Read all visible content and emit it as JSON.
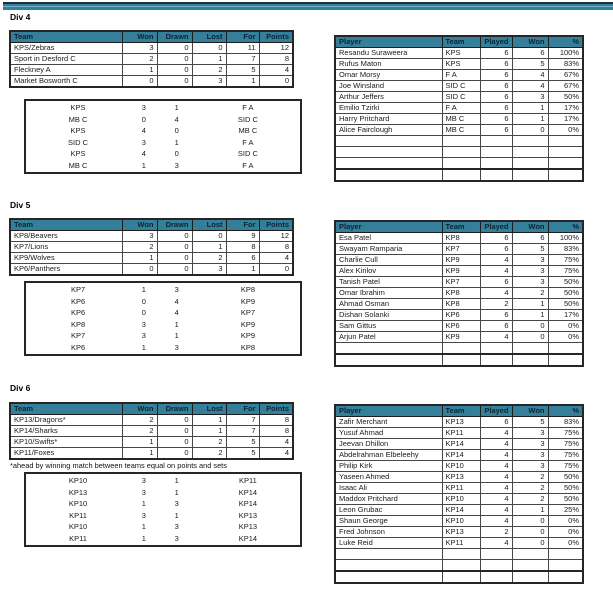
{
  "colors": {
    "accent_teal": "#34809a",
    "header_text": "#0c2330"
  },
  "league_headers": [
    "Team",
    "Won",
    "Drawn",
    "Lost",
    "For",
    "Points"
  ],
  "player_headers": [
    "Player",
    "Team",
    "Played",
    "Won",
    "%"
  ],
  "sections": [
    {
      "title": "Div 4",
      "note": "",
      "standings": [
        [
          "KPS/Zebras",
          "3",
          "0",
          "0",
          "11",
          "12"
        ],
        [
          "Sport in Desford C",
          "2",
          "0",
          "1",
          "7",
          "8"
        ],
        [
          "Fleckney A",
          "1",
          "0",
          "2",
          "5",
          "4"
        ],
        [
          "Market Bosworth C",
          "0",
          "0",
          "3",
          "1",
          "0"
        ]
      ],
      "matches": [
        [
          "KPS",
          "3",
          "1",
          "F A"
        ],
        [
          "MB C",
          "0",
          "4",
          "SID C"
        ],
        [
          "KPS",
          "4",
          "0",
          "MB C"
        ],
        [
          "SID C",
          "3",
          "1",
          "F A"
        ],
        [
          "KPS",
          "4",
          "0",
          "SID C"
        ],
        [
          "MB C",
          "1",
          "3",
          "F A"
        ]
      ],
      "players": [
        [
          "Resandu Suraweera",
          "KPS",
          "6",
          "6",
          "100%"
        ],
        [
          "Rufus Maton",
          "KPS",
          "6",
          "5",
          "83%"
        ],
        [
          "Omar Morsy",
          "F A",
          "6",
          "4",
          "67%"
        ],
        [
          "Joe Winsland",
          "SID C",
          "6",
          "4",
          "67%"
        ],
        [
          "Arthur Jeffers",
          "SID C",
          "6",
          "3",
          "50%"
        ],
        [
          "Emilio Tzirki",
          "F A",
          "6",
          "1",
          "17%"
        ],
        [
          "Harry Pritchard",
          "MB C",
          "6",
          "1",
          "17%"
        ],
        [
          "Alice Fairclough",
          "MB C",
          "6",
          "0",
          "0%"
        ]
      ],
      "empty_rows": 4
    },
    {
      "title": "Div 5",
      "note": "",
      "standings": [
        [
          "KP8/Beavers",
          "3",
          "0",
          "0",
          "9",
          "12"
        ],
        [
          "KP7/Lions",
          "2",
          "0",
          "1",
          "8",
          "8"
        ],
        [
          "KP9/Wolves",
          "1",
          "0",
          "2",
          "6",
          "4"
        ],
        [
          "KP6/Panthers",
          "0",
          "0",
          "3",
          "1",
          "0"
        ]
      ],
      "matches": [
        [
          "KP7",
          "1",
          "3",
          "KP8"
        ],
        [
          "KP6",
          "0",
          "4",
          "KP9"
        ],
        [
          "KP6",
          "0",
          "4",
          "KP7"
        ],
        [
          "KP8",
          "3",
          "1",
          "KP9"
        ],
        [
          "KP7",
          "3",
          "1",
          "KP9"
        ],
        [
          "KP6",
          "1",
          "3",
          "KP8"
        ]
      ],
      "players": [
        [
          "Esa Patel",
          "KP8",
          "6",
          "6",
          "100%"
        ],
        [
          "Swayam Ramparia",
          "KP7",
          "6",
          "5",
          "83%"
        ],
        [
          "Charlie Cull",
          "KP9",
          "4",
          "3",
          "75%"
        ],
        [
          "Alex Kirilov",
          "KP9",
          "4",
          "3",
          "75%"
        ],
        [
          "Tanish Patel",
          "KP7",
          "6",
          "3",
          "50%"
        ],
        [
          "Omar Ibrahim",
          "KP8",
          "4",
          "2",
          "50%"
        ],
        [
          "Ahmad Osman",
          "KP8",
          "2",
          "1",
          "50%"
        ],
        [
          "Dishan Solanki",
          "KP6",
          "6",
          "1",
          "17%"
        ],
        [
          "Sam Gittus",
          "KP6",
          "6",
          "0",
          "0%"
        ],
        [
          "Arjun Patel",
          "KP9",
          "4",
          "0",
          "0%"
        ]
      ],
      "empty_rows": 2
    },
    {
      "title": "Div 6",
      "note": "*ahead by winning match between teams equal on points and sets",
      "standings": [
        [
          "KP13/Dragons*",
          "2",
          "0",
          "1",
          "7",
          "8"
        ],
        [
          "KP14/Sharks",
          "2",
          "0",
          "1",
          "7",
          "8"
        ],
        [
          "KP10/Swifts*",
          "1",
          "0",
          "2",
          "5",
          "4"
        ],
        [
          "KP11/Foxes",
          "1",
          "0",
          "2",
          "5",
          "4"
        ]
      ],
      "matches": [
        [
          "KP10",
          "3",
          "1",
          "KP11"
        ],
        [
          "KP13",
          "3",
          "1",
          "KP14"
        ],
        [
          "KP10",
          "1",
          "3",
          "KP14"
        ],
        [
          "KP11",
          "3",
          "1",
          "KP13"
        ],
        [
          "KP10",
          "1",
          "3",
          "KP13"
        ],
        [
          "KP11",
          "1",
          "3",
          "KP14"
        ]
      ],
      "players": [
        [
          "Zafir Merchant",
          "KP13",
          "6",
          "5",
          "83%"
        ],
        [
          "Yusuf Ahmad",
          "KP11",
          "4",
          "3",
          "75%"
        ],
        [
          "Jeevan Dhillon",
          "KP14",
          "4",
          "3",
          "75%"
        ],
        [
          "Abdelrahman Elbeleehy",
          "KP14",
          "4",
          "3",
          "75%"
        ],
        [
          "Philip Kirk",
          "KP10",
          "4",
          "3",
          "75%"
        ],
        [
          "Yaseen Ahmed",
          "KP13",
          "4",
          "2",
          "50%"
        ],
        [
          "Isaac Ali",
          "KP11",
          "4",
          "2",
          "50%"
        ],
        [
          "Maddox Pritchard",
          "KP10",
          "4",
          "2",
          "50%"
        ],
        [
          "Leon Grubac",
          "KP14",
          "4",
          "1",
          "25%"
        ],
        [
          "Shaun George",
          "KP10",
          "4",
          "0",
          "0%"
        ],
        [
          "Fred Johnson",
          "KP13",
          "2",
          "0",
          "0%"
        ],
        [
          "Luke Reid",
          "KP11",
          "4",
          "0",
          "0%"
        ]
      ],
      "empty_rows": 3
    }
  ]
}
